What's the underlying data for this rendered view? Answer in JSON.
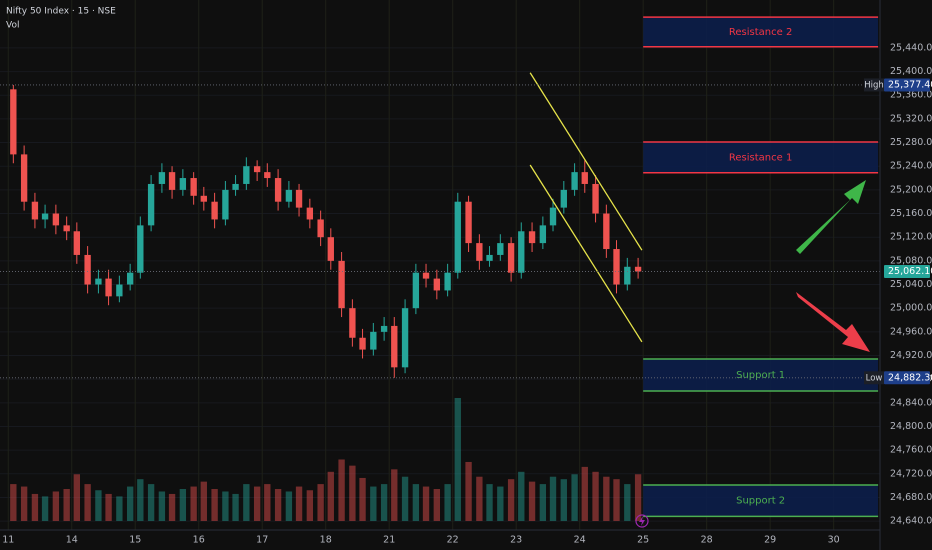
{
  "chart_data": {
    "type": "candlestick",
    "title": "Nifty 50 Index · 15 · NSE",
    "subtitle": "Vol",
    "up_color": "#26a69a",
    "down_color": "#ef5350",
    "grid": true,
    "xlim": [
      -0.13,
      13.73
    ],
    "ylim": [
      24625,
      25521
    ],
    "xticks": [
      {
        "value": 0,
        "label": "11"
      },
      {
        "value": 1,
        "label": "14"
      },
      {
        "value": 2,
        "label": "15"
      },
      {
        "value": 3,
        "label": "16"
      },
      {
        "value": 4,
        "label": "17"
      },
      {
        "value": 5,
        "label": "18"
      },
      {
        "value": 6,
        "label": "21"
      },
      {
        "value": 7,
        "label": "22"
      },
      {
        "value": 8,
        "label": "23"
      },
      {
        "value": 9,
        "label": "24"
      },
      {
        "value": 10,
        "label": "25"
      },
      {
        "value": 11,
        "label": "28"
      },
      {
        "value": 12,
        "label": "29"
      },
      {
        "value": 13,
        "label": "30"
      }
    ],
    "yticks": [
      {
        "value": 25440,
        "label": "25,440.00"
      },
      {
        "value": 25400,
        "label": "25,400.00"
      },
      {
        "value": 25360,
        "label": "25,360.00"
      },
      {
        "value": 25320,
        "label": "25,320.00"
      },
      {
        "value": 25280,
        "label": "25,280.00"
      },
      {
        "value": 25240,
        "label": "25,240.00"
      },
      {
        "value": 25200,
        "label": "25,200.00"
      },
      {
        "value": 25160,
        "label": "25,160.00"
      },
      {
        "value": 25120,
        "label": "25,120.00"
      },
      {
        "value": 25080,
        "label": "25,080.00"
      },
      {
        "value": 25040,
        "label": "25,040.00"
      },
      {
        "value": 25000,
        "label": "25,000.00"
      },
      {
        "value": 24960,
        "label": "24,960.00"
      },
      {
        "value": 24920,
        "label": "24,920.00"
      },
      {
        "value": 24880,
        "label": "24,880.00"
      },
      {
        "value": 24840,
        "label": "24,840.00"
      },
      {
        "value": 24800,
        "label": "24,800.00"
      },
      {
        "value": 24760,
        "label": "24,760.00"
      },
      {
        "value": 24720,
        "label": "24,720.00"
      },
      {
        "value": 24680,
        "label": "24,680.00"
      },
      {
        "value": 24640,
        "label": "24,640.00"
      }
    ],
    "x": [
      0.08,
      0.25,
      0.42,
      0.58,
      0.75,
      0.92,
      1.08,
      1.25,
      1.42,
      1.58,
      1.75,
      1.92,
      2.08,
      2.25,
      2.42,
      2.58,
      2.75,
      2.92,
      3.08,
      3.25,
      3.42,
      3.58,
      3.75,
      3.92,
      4.08,
      4.25,
      4.42,
      4.58,
      4.75,
      4.92,
      5.08,
      5.25,
      5.42,
      5.58,
      5.75,
      5.92,
      6.08,
      6.25,
      6.42,
      6.58,
      6.75,
      6.92,
      7.08,
      7.25,
      7.42,
      7.58,
      7.75,
      7.92,
      8.08,
      8.25,
      8.42,
      8.58,
      8.75,
      8.92,
      9.08,
      9.25,
      9.42,
      9.58,
      9.75,
      9.92
    ],
    "open": [
      25370,
      25260,
      25180,
      25150,
      25160,
      25140,
      25130,
      25090,
      25040,
      25050,
      25020,
      25040,
      25060,
      25140,
      25210,
      25230,
      25200,
      25220,
      25190,
      25180,
      25150,
      25200,
      25210,
      25240,
      25230,
      25220,
      25180,
      25200,
      25170,
      25150,
      25120,
      25080,
      25000,
      24950,
      24930,
      24960,
      24970,
      24900,
      25000,
      25060,
      25050,
      25030,
      25060,
      25180,
      25110,
      25080,
      25090,
      25110,
      25060,
      25130,
      25110,
      25140,
      25170,
      25200,
      25230,
      25210,
      25160,
      25100,
      25040,
      25070
    ],
    "high": [
      25377.4,
      25275,
      25195,
      25175,
      25175,
      25155,
      25145,
      25105,
      25065,
      25065,
      25055,
      25075,
      25155,
      25225,
      25245,
      25240,
      25235,
      25230,
      25205,
      25195,
      25215,
      25225,
      25255,
      25250,
      25245,
      25235,
      25215,
      25210,
      25185,
      25165,
      25135,
      25095,
      25015,
      24965,
      24975,
      24985,
      24985,
      25015,
      25075,
      25075,
      25065,
      25075,
      25195,
      25190,
      25125,
      25105,
      25125,
      25120,
      25145,
      25145,
      25155,
      25185,
      25215,
      25245,
      25250,
      25225,
      25175,
      25115,
      25085,
      25085
    ],
    "low": [
      25245,
      25165,
      25135,
      25135,
      25125,
      25115,
      25075,
      25025,
      25025,
      25005,
      25010,
      25030,
      25050,
      25130,
      25195,
      25185,
      25190,
      25175,
      25165,
      25135,
      25140,
      25190,
      25200,
      25215,
      25205,
      25165,
      25170,
      25155,
      25135,
      25105,
      25065,
      24985,
      24935,
      24915,
      24920,
      24945,
      24882.3,
      24890,
      24990,
      25035,
      25015,
      25020,
      25050,
      25095,
      25065,
      25070,
      25080,
      25045,
      25050,
      25095,
      25100,
      25130,
      25160,
      25190,
      25195,
      25145,
      25085,
      25025,
      25030,
      25050
    ],
    "close": [
      25260,
      25180,
      25150,
      25160,
      25140,
      25130,
      25090,
      25040,
      25050,
      25020,
      25040,
      25060,
      25140,
      25210,
      25230,
      25200,
      25220,
      25190,
      25180,
      25150,
      25200,
      25210,
      25240,
      25230,
      25220,
      25180,
      25200,
      25170,
      25150,
      25120,
      25080,
      25000,
      24950,
      24930,
      24960,
      24970,
      24900,
      25000,
      25060,
      25050,
      25030,
      25060,
      25180,
      25110,
      25080,
      25090,
      25110,
      25060,
      25130,
      25110,
      25140,
      25170,
      25200,
      25230,
      25210,
      25160,
      25100,
      25040,
      25070,
      25062.1
    ],
    "vlim": [
      0,
      100
    ],
    "volume": [
      30,
      28,
      22,
      20,
      24,
      26,
      38,
      30,
      25,
      22,
      20,
      28,
      34,
      30,
      24,
      22,
      26,
      28,
      32,
      26,
      24,
      22,
      30,
      28,
      30,
      26,
      24,
      28,
      25,
      30,
      40,
      50,
      45,
      35,
      28,
      30,
      42,
      36,
      30,
      28,
      26,
      30,
      100,
      48,
      36,
      30,
      28,
      34,
      40,
      32,
      30,
      36,
      34,
      38,
      44,
      40,
      36,
      34,
      30,
      38
    ],
    "zones": [
      {
        "label": "Resistance 2",
        "top": 25492,
        "bottom": 25442,
        "color": "#f23645",
        "x_from": 10,
        "x_to": 13.7
      },
      {
        "label": "Resistance 1",
        "top": 25281,
        "bottom": 25229,
        "color": "#f23645",
        "x_from": 10,
        "x_to": 13.7
      },
      {
        "label": "Support 1",
        "top": 24914,
        "bottom": 24860,
        "color": "#4caf50",
        "x_from": 10,
        "x_to": 13.7
      },
      {
        "label": "Support 2",
        "top": 24701,
        "bottom": 24648,
        "color": "#4caf50",
        "x_from": 10,
        "x_to": 13.7
      }
    ],
    "trendlines": [
      {
        "x": [
          8.22,
          9.98
        ],
        "y": [
          25398,
          25098
        ],
        "color": "#e6e34a"
      },
      {
        "x": [
          8.22,
          9.98
        ],
        "y": [
          25242,
          24943
        ],
        "color": "#e6e34a"
      }
    ],
    "markers": [
      {
        "name": "High",
        "value": 25377.4,
        "label": "25,377.40",
        "color": "#1e3f8a"
      },
      {
        "name": "Low",
        "value": 24882.3,
        "label": "24,882.30",
        "color": "#1e3f8a"
      },
      {
        "value": 25062.1,
        "label": "25,062.10",
        "color": "#26a69a"
      }
    ]
  }
}
